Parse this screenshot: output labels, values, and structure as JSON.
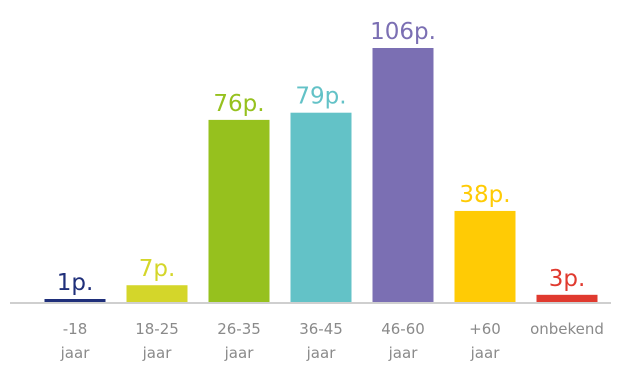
{
  "chart_data": {
    "type": "bar",
    "categories": [
      [
        "-18",
        "jaar"
      ],
      [
        "18-25",
        "jaar"
      ],
      [
        "26-35",
        "jaar"
      ],
      [
        "36-45",
        "jaar"
      ],
      [
        "46-60",
        "jaar"
      ],
      [
        "+60",
        "jaar"
      ],
      [
        "onbekend"
      ]
    ],
    "values": [
      1,
      7,
      76,
      79,
      106,
      38,
      3
    ],
    "value_labels": [
      "1p.",
      "7p.",
      "76p.",
      "79p.",
      "106p.",
      "38p.",
      "3p."
    ],
    "colors": [
      "#1f2f7a",
      "#d4d62a",
      "#96c11e",
      "#63c2c7",
      "#7b6fb3",
      "#ffcb05",
      "#e03a2f"
    ],
    "baseline_color": "#cfcfcf",
    "category_label_color": "#8a8a8a",
    "ylim": [
      0,
      106
    ],
    "grid": false,
    "legend": "none"
  }
}
